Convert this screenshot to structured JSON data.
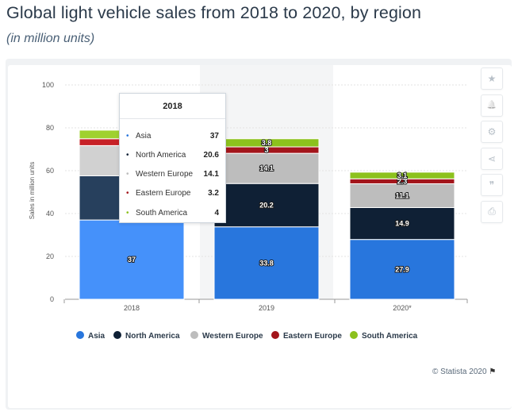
{
  "header": {
    "title": "Global light vehicle sales from 2018 to 2020, by region",
    "subtitle": "(in million units)"
  },
  "colors": {
    "asia": "#2876dd",
    "north_america": "#0f2035",
    "western_europe": "#bdbdbd",
    "eastern_europe": "#a3151b",
    "south_america": "#8cc11d",
    "hover_asia": "#4591fa",
    "hover_north_america": "#27405d",
    "hover_western_europe": "#d1d1d1",
    "hover_eastern_europe": "#c72127",
    "hover_south_america": "#9fd12f"
  },
  "chart_data": {
    "type": "bar",
    "stacked": true,
    "categories": [
      "2018",
      "2019",
      "2020*"
    ],
    "series": [
      {
        "name": "Asia",
        "values": [
          37,
          33.8,
          27.9
        ]
      },
      {
        "name": "North America",
        "values": [
          20.6,
          20.2,
          14.9
        ]
      },
      {
        "name": "Western Europe",
        "values": [
          14.1,
          14.1,
          11.1
        ]
      },
      {
        "name": "Eastern Europe",
        "values": [
          3.2,
          3,
          2.3
        ]
      },
      {
        "name": "South America",
        "values": [
          4,
          3.8,
          3.1
        ]
      }
    ],
    "data_labels": [
      [
        "37",
        "",
        "",
        "",
        ""
      ],
      [
        "33.8",
        "20.2",
        "14.1",
        "3",
        "3.8"
      ],
      [
        "27.9",
        "14.9",
        "11.1",
        "2.3",
        "3.1"
      ]
    ],
    "title": "",
    "xlabel": "",
    "ylabel": "Sales in million units",
    "ylim": [
      0,
      100
    ],
    "yticks": [
      "0",
      "20",
      "40",
      "60",
      "80",
      "100"
    ],
    "grid": true,
    "legend_position": "bottom",
    "hovered_category": "2018"
  },
  "tooltip": {
    "title": "2018",
    "rows": [
      {
        "label": "Asia",
        "value": "37",
        "color": "#2876dd"
      },
      {
        "label": "North America",
        "value": "20.6",
        "color": "#0f2035"
      },
      {
        "label": "Western Europe",
        "value": "14.1",
        "color": "#bdbdbd"
      },
      {
        "label": "Eastern Europe",
        "value": "3.2",
        "color": "#a3151b"
      },
      {
        "label": "South America",
        "value": "4",
        "color": "#8cc11d"
      }
    ]
  },
  "toolbar": {
    "buttons": [
      {
        "name": "favorite-button",
        "icon": "star-icon",
        "glyph": "★"
      },
      {
        "name": "notification-button",
        "icon": "bell-icon",
        "glyph": "🔔"
      },
      {
        "name": "settings-button",
        "icon": "gear-icon",
        "glyph": "⚙"
      },
      {
        "name": "share-button",
        "icon": "share-icon",
        "glyph": "⋖"
      },
      {
        "name": "cite-button",
        "icon": "quote-icon",
        "glyph": "❞"
      },
      {
        "name": "print-button",
        "icon": "printer-icon",
        "glyph": "⎙"
      }
    ]
  },
  "footer": {
    "credit": "© Statista 2020",
    "flag_icon": "flag-icon"
  }
}
